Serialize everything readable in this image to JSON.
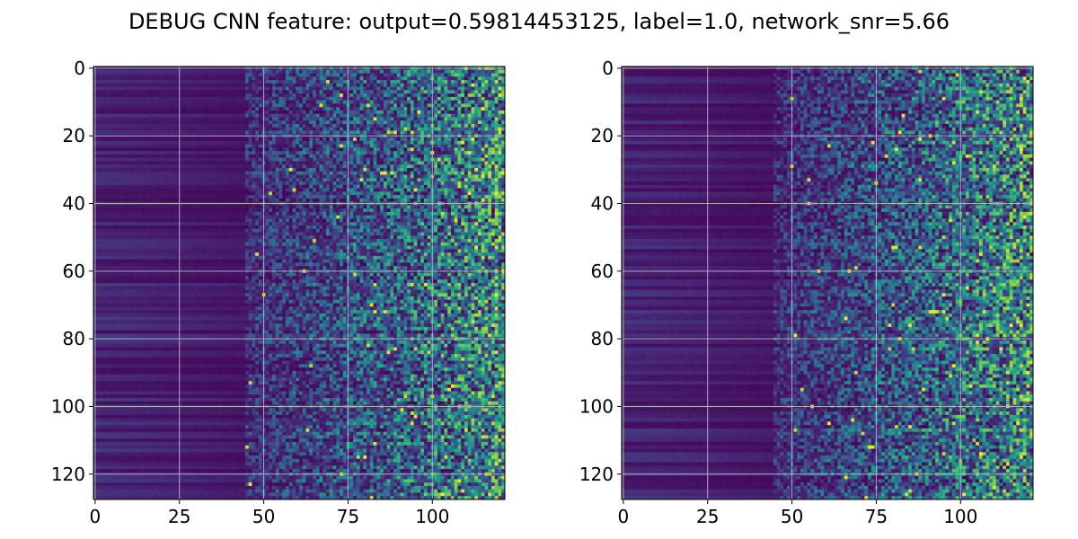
{
  "title": "DEBUG CNN feature: output=0.59814453125, label=1.0, network_snr=5.66",
  "chart_data": [
    {
      "type": "heatmap",
      "colormap": "viridis",
      "grid": true,
      "grid_color": "#b0b0b0",
      "rows": 128,
      "cols": 122,
      "xlim": [
        -0.5,
        121.5
      ],
      "ylim": [
        127.5,
        -0.5
      ],
      "x_ticks": [
        0,
        25,
        50,
        75,
        100
      ],
      "y_ticks": [
        0,
        20,
        40,
        60,
        80,
        100,
        120
      ],
      "x_tick_labels": [
        "0",
        "25",
        "50",
        "75",
        "100"
      ],
      "y_tick_labels": [
        "0",
        "20",
        "40",
        "60",
        "80",
        "100",
        "120"
      ],
      "seed": 17,
      "pattern": "low uniform rows at left (columns 0–45), increasingly noisy bright pixels toward right"
    },
    {
      "type": "heatmap",
      "colormap": "viridis",
      "grid": true,
      "grid_color": "#b0b0b0",
      "rows": 128,
      "cols": 122,
      "xlim": [
        -0.5,
        121.5
      ],
      "ylim": [
        127.5,
        -0.5
      ],
      "x_ticks": [
        0,
        25,
        50,
        75,
        100
      ],
      "y_ticks": [
        0,
        20,
        40,
        60,
        80,
        100,
        120
      ],
      "x_tick_labels": [
        "0",
        "25",
        "50",
        "75",
        "100"
      ],
      "y_tick_labels": [
        "0",
        "20",
        "40",
        "60",
        "80",
        "100",
        "120"
      ],
      "seed": 53,
      "pattern": "low uniform rows at left (columns 0–45), increasingly noisy bright pixels toward right"
    }
  ]
}
